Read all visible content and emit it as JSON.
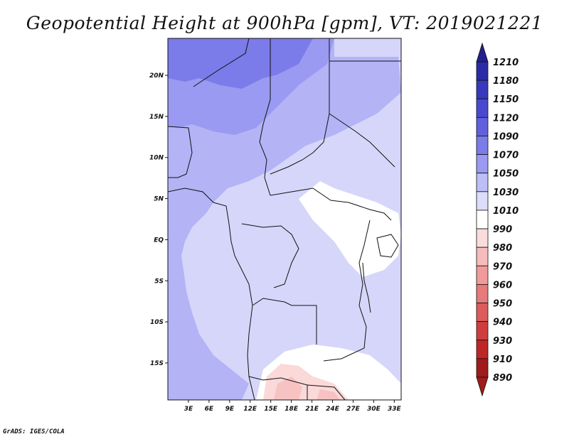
{
  "title": "Geopotential Height at 900hPa [gpm], VT: 2019021221",
  "credit": "GrADS: IGES/COLA",
  "map": {
    "lon_range": [
      0,
      34
    ],
    "lat_range": [
      -19.5,
      24.5
    ],
    "lat_ticks": [
      {
        "value": 20,
        "label": "20N"
      },
      {
        "value": 15,
        "label": "15N"
      },
      {
        "value": 10,
        "label": "10N"
      },
      {
        "value": 5,
        "label": "5N"
      },
      {
        "value": 0,
        "label": "EQ"
      },
      {
        "value": -5,
        "label": "5S"
      },
      {
        "value": -10,
        "label": "10S"
      },
      {
        "value": -15,
        "label": "15S"
      }
    ],
    "lon_ticks": [
      {
        "value": 3,
        "label": "3E"
      },
      {
        "value": 6,
        "label": "6E"
      },
      {
        "value": 9,
        "label": "9E"
      },
      {
        "value": 12,
        "label": "12E"
      },
      {
        "value": 15,
        "label": "15E"
      },
      {
        "value": 18,
        "label": "18E"
      },
      {
        "value": 21,
        "label": "21E"
      },
      {
        "value": 24,
        "label": "24E"
      },
      {
        "value": 27,
        "label": "27E"
      },
      {
        "value": 30,
        "label": "30E"
      },
      {
        "value": 33,
        "label": "33E"
      }
    ]
  },
  "colorbar": {
    "levels": [
      "1210",
      "1180",
      "1150",
      "1120",
      "1090",
      "1070",
      "1050",
      "1030",
      "1010",
      "990",
      "980",
      "970",
      "960",
      "950",
      "940",
      "930",
      "910",
      "890"
    ],
    "colors": [
      "#231f8c",
      "#2b2ba6",
      "#3838be",
      "#4949d0",
      "#6060de",
      "#7b7be9",
      "#9a9af2",
      "#bdbdf7",
      "#dcdcfb",
      "#ffffff",
      "#fbdcdc",
      "#f6bcbc",
      "#f09a9a",
      "#e77a7a",
      "#dc5b5b",
      "#cf3d3d",
      "#bf2626",
      "#a01b1b"
    ]
  },
  "field_colors": {
    "c1090": "#7b7be9",
    "c1070": "#9a9af2",
    "c1050": "#b3b3f6",
    "c1030": "#d6d6fa",
    "c1010": "#ffffff",
    "c990": "#fbd9d9",
    "c980": "#f6c2c2"
  }
}
